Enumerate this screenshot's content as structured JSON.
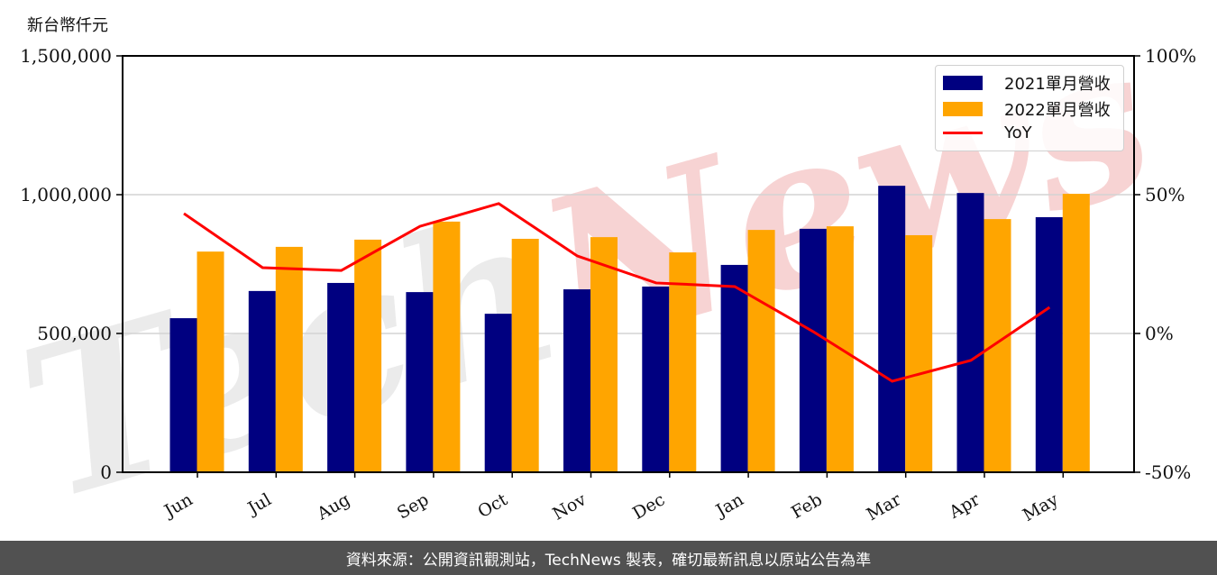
{
  "chart_data": {
    "type": "bar",
    "title": "",
    "unit_label": "新台幣仟元",
    "xlabel": "",
    "ylabel": "新台幣仟元",
    "y2label": "YoY",
    "categories": [
      "Jun",
      "Jul",
      "Aug",
      "Sep",
      "Oct",
      "Nov",
      "Dec",
      "Jan",
      "Feb",
      "Mar",
      "Apr",
      "May"
    ],
    "series": [
      {
        "name": "2021單月營收",
        "type": "bar",
        "color": "#000080",
        "axis": "left",
        "values": [
          555000,
          653000,
          682000,
          649000,
          571000,
          659000,
          669000,
          747000,
          877000,
          1032000,
          1006000,
          919000
        ]
      },
      {
        "name": "2022單月營收",
        "type": "bar",
        "color": "#FFA500",
        "axis": "left",
        "values": [
          795000,
          812000,
          838000,
          903000,
          841000,
          847000,
          792000,
          873000,
          886000,
          854000,
          912000,
          1003000
        ]
      },
      {
        "name": "YoY",
        "type": "line",
        "color": "#FF0000",
        "axis": "right",
        "unit": "%",
        "values": [
          43.2,
          23.7,
          22.7,
          38.6,
          46.8,
          27.9,
          18.2,
          16.9,
          0.6,
          -17.2,
          -9.7,
          9.4
        ]
      }
    ],
    "ylim": [
      0,
      1500000
    ],
    "y2lim": [
      -50,
      100
    ],
    "yticks": [
      0,
      500000,
      1000000,
      1500000
    ],
    "ytick_labels": [
      "0",
      "500,000",
      "1,000,000",
      "1,500,000"
    ],
    "y2ticks": [
      -50,
      0,
      50,
      100
    ],
    "y2tick_labels": [
      "-50%",
      "0%",
      "50%",
      "100%"
    ],
    "grid": "horizontal",
    "legend_position": "upper right",
    "watermark": "TechNews"
  },
  "footer": {
    "source_text": "資料來源：公開資訊觀測站，TechNews 製表，確切最新訊息以原站公告為準"
  }
}
